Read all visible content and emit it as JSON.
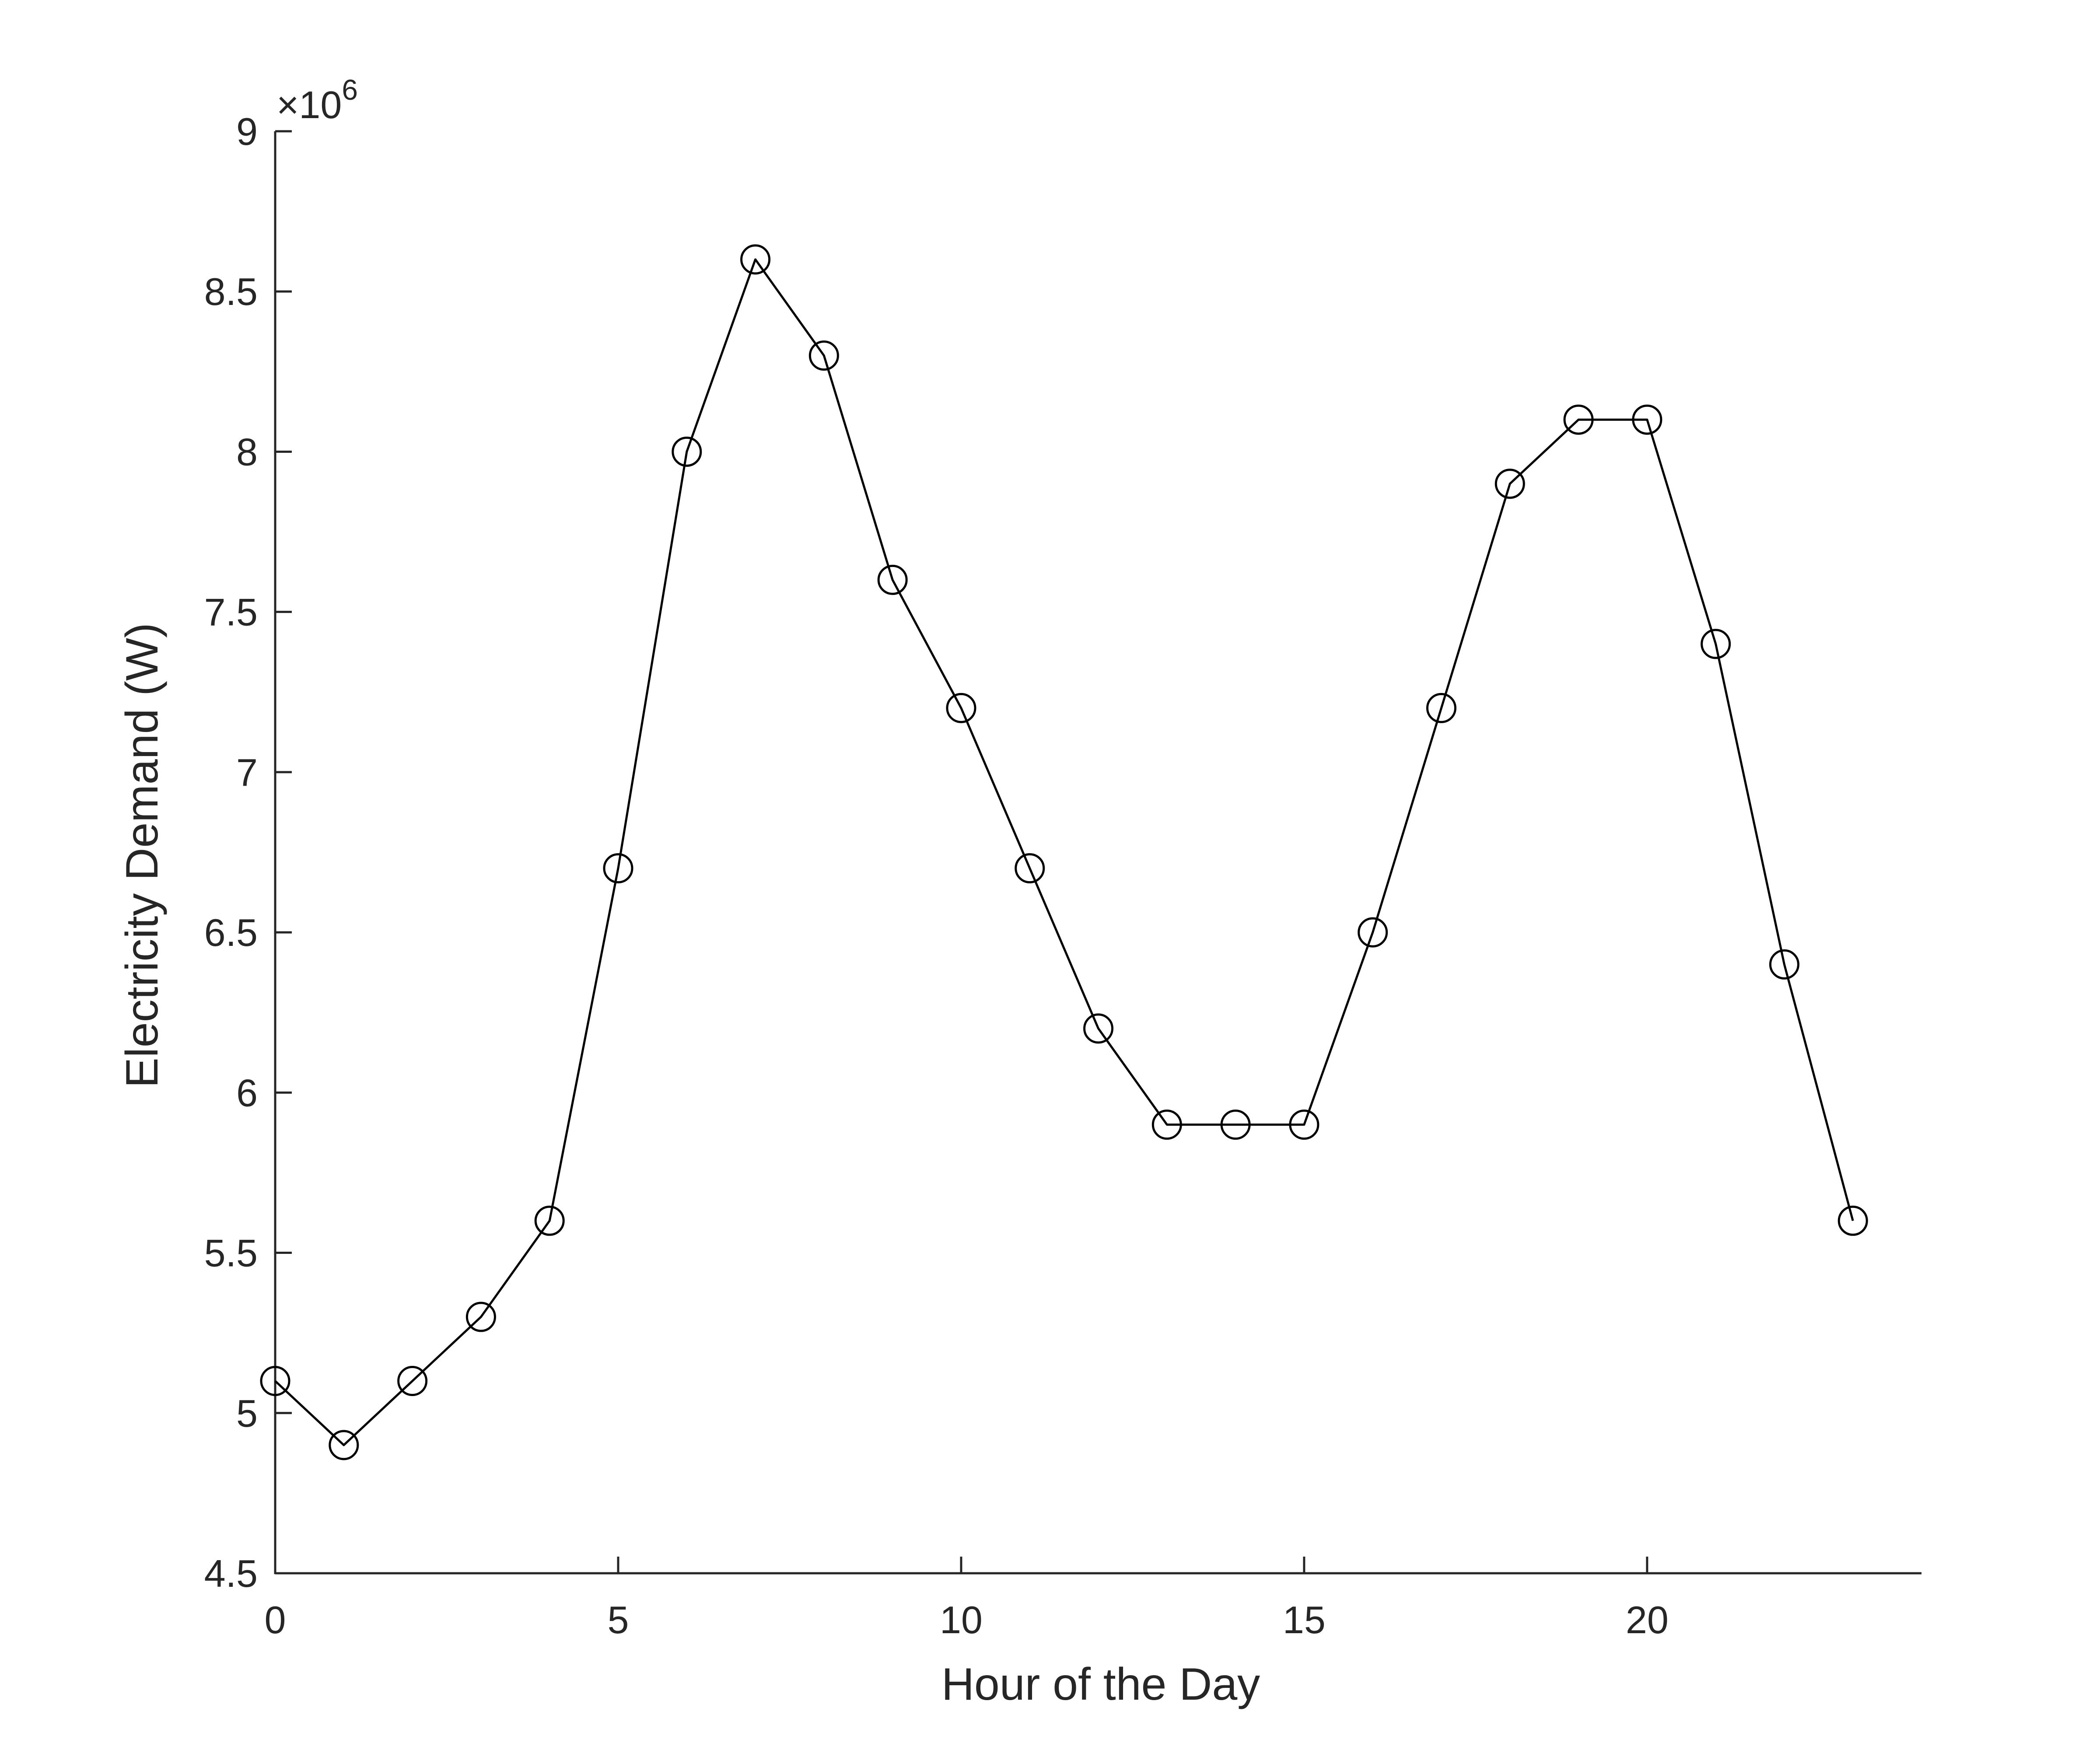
{
  "chart_data": {
    "type": "line",
    "title": "",
    "xlabel": "Hour of the Day",
    "ylabel": "Electricity Demand (W)",
    "y_exponent_label": "×10",
    "y_exponent_power": "6",
    "xlim": [
      0,
      24
    ],
    "ylim": [
      4.5,
      9
    ],
    "y_scale_factor": 1000000,
    "grid": false,
    "legend": "none",
    "x_ticks": [
      0,
      5,
      10,
      15,
      20
    ],
    "y_ticks": [
      4.5,
      5,
      5.5,
      6,
      6.5,
      7,
      7.5,
      8,
      8.5,
      9
    ],
    "series": [
      {
        "marker": "circle",
        "color": "#000000",
        "x": [
          0,
          1,
          2,
          3,
          4,
          5,
          6,
          7,
          8,
          9,
          10,
          11,
          12,
          13,
          14,
          15,
          16,
          17,
          18,
          19,
          20,
          21,
          22,
          23
        ],
        "y": [
          5.1,
          4.9,
          5.1,
          5.3,
          5.6,
          6.7,
          8.0,
          8.6,
          8.3,
          7.6,
          7.2,
          6.7,
          6.2,
          5.9,
          5.9,
          5.9,
          6.5,
          7.2,
          7.9,
          8.1,
          8.1,
          7.4,
          6.4,
          5.6
        ]
      }
    ]
  }
}
